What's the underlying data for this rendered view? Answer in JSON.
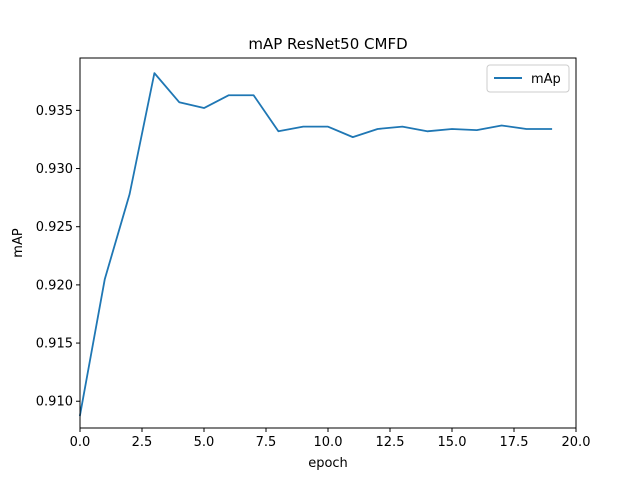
{
  "chart_data": {
    "type": "line",
    "title": "mAP ResNet50 CMFD",
    "xlabel": "epoch",
    "ylabel": "mAP",
    "xlim": [
      0.0,
      20.0
    ],
    "ylim": [
      0.9077,
      0.9395
    ],
    "x_ticks": [
      0.0,
      2.5,
      5.0,
      7.5,
      10.0,
      12.5,
      15.0,
      17.5,
      20.0
    ],
    "x_tick_labels": [
      "0.0",
      "2.5",
      "5.0",
      "7.5",
      "10.0",
      "12.5",
      "15.0",
      "17.5",
      "20.0"
    ],
    "y_ticks": [
      0.91,
      0.915,
      0.92,
      0.925,
      0.93,
      0.935
    ],
    "y_tick_labels": [
      "0.910",
      "0.915",
      "0.920",
      "0.925",
      "0.930",
      "0.935"
    ],
    "grid": false,
    "legend_position": "top-right",
    "series": [
      {
        "name": "mAp",
        "color": "#1f77b4",
        "x": [
          0,
          1,
          2,
          3,
          4,
          5,
          6,
          7,
          8,
          9,
          10,
          11,
          12,
          13,
          14,
          15,
          16,
          17,
          18,
          19
        ],
        "y": [
          0.9088,
          0.9205,
          0.9278,
          0.9382,
          0.9357,
          0.9352,
          0.9363,
          0.9363,
          0.9332,
          0.9336,
          0.9336,
          0.9327,
          0.9334,
          0.9336,
          0.9332,
          0.9334,
          0.9333,
          0.9337,
          0.9334,
          0.9334
        ]
      }
    ]
  }
}
